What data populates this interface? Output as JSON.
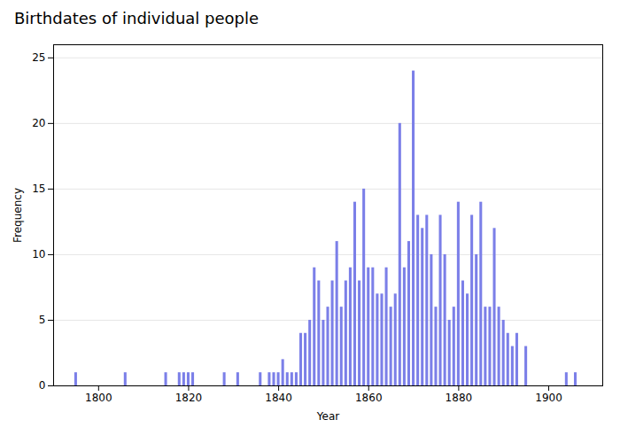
{
  "chart_data": {
    "type": "bar",
    "title": "Birthdates of individual people",
    "xlabel": "Year",
    "ylabel": "Frequency",
    "x": [
      1795,
      1806,
      1815,
      1818,
      1819,
      1820,
      1821,
      1828,
      1831,
      1836,
      1838,
      1839,
      1840,
      1841,
      1842,
      1843,
      1844,
      1845,
      1846,
      1847,
      1848,
      1849,
      1850,
      1851,
      1852,
      1853,
      1854,
      1855,
      1856,
      1857,
      1858,
      1859,
      1860,
      1861,
      1862,
      1863,
      1864,
      1865,
      1866,
      1867,
      1868,
      1869,
      1870,
      1871,
      1872,
      1873,
      1874,
      1875,
      1876,
      1877,
      1878,
      1879,
      1880,
      1881,
      1882,
      1883,
      1884,
      1885,
      1886,
      1887,
      1888,
      1889,
      1890,
      1891,
      1892,
      1893,
      1895,
      1904,
      1906
    ],
    "values": [
      1,
      1,
      1,
      1,
      1,
      1,
      1,
      1,
      1,
      1,
      1,
      1,
      1,
      2,
      1,
      1,
      1,
      4,
      4,
      5,
      9,
      8,
      5,
      6,
      8,
      11,
      6,
      8,
      9,
      14,
      8,
      15,
      9,
      9,
      7,
      7,
      9,
      6,
      7,
      20,
      9,
      11,
      24,
      13,
      12,
      13,
      10,
      6,
      13,
      10,
      5,
      6,
      14,
      8,
      7,
      13,
      10,
      14,
      6,
      6,
      12,
      6,
      5,
      4,
      3,
      4,
      3,
      1,
      1
    ],
    "color": "#7b7fe8",
    "xlim": [
      1790,
      1912
    ],
    "ylim": [
      0,
      26
    ],
    "xticks": [
      1800,
      1820,
      1840,
      1860,
      1880,
      1900
    ],
    "yticks": [
      0,
      5,
      10,
      15,
      20,
      25
    ],
    "grid": true
  }
}
